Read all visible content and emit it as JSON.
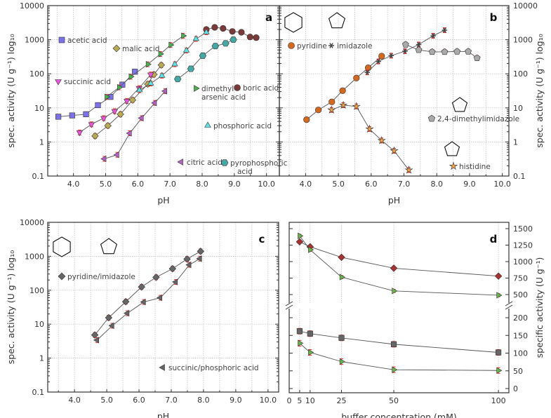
{
  "chart_data": [
    {
      "panel_label": "a",
      "type": "line",
      "xlabel": "pH",
      "ylabel": "spec. activity (U g⁻¹) log₁₀",
      "yscale": "log",
      "ylim": [
        0.1,
        10000
      ],
      "xlim": [
        3.2,
        10.4
      ],
      "grid": true,
      "xticks": [
        "4.0",
        "5.0",
        "6.0",
        "7.0",
        "8.0",
        "9.0",
        "10.0"
      ],
      "yticks": [
        "0.1",
        "1",
        "10",
        "100",
        "1000",
        "10000"
      ],
      "series": [
        {
          "name": "acetic acid",
          "marker": "square",
          "color": "#7b72e8",
          "x": [
            3.53,
            3.96,
            4.39,
            4.76,
            5.15,
            5.52,
            5.91
          ],
          "y": [
            5.5,
            6,
            6.5,
            12,
            21,
            48,
            115
          ]
        },
        {
          "name": "malic acid",
          "marker": "diamond",
          "color": "#b8ab55",
          "x": [
            4.67,
            5.07,
            5.46,
            5.84,
            6.31,
            6.5,
            6.73
          ],
          "y": [
            1.5,
            3,
            6.5,
            17,
            50,
            95,
            180
          ]
        },
        {
          "name": "succinic acid",
          "marker": "tri-down",
          "color": "#ee55e0",
          "x": [
            4.19,
            4.56,
            4.94,
            5.28,
            5.66,
            6.04,
            6.4
          ],
          "y": [
            1.9,
            3.3,
            5,
            8,
            16,
            38,
            95
          ]
        },
        {
          "name": "dimethyl-",
          "name2": "arsenic acid",
          "marker": "tri-right",
          "color": "#4caf50",
          "x": [
            5.03,
            5.42,
            5.78,
            6.31,
            6.7,
            7.02,
            7.41
          ],
          "y": [
            21,
            40,
            82,
            190,
            380,
            700,
            1300
          ]
        },
        {
          "name": "boric acid",
          "marker": "circle",
          "color": "#7a3a3a",
          "x": [
            8.13,
            8.39,
            8.65,
            8.94,
            9.22,
            9.49,
            9.68
          ],
          "y": [
            2000,
            2300,
            2150,
            1750,
            1650,
            1200,
            1150
          ]
        },
        {
          "name": "phosphoric acid",
          "marker": "tri-up",
          "color": "#62e0e4",
          "x": [
            6.05,
            6.4,
            6.75,
            7.15,
            7.51,
            7.81,
            8.13
          ],
          "y": [
            33,
            52,
            88,
            190,
            480,
            1050,
            1650
          ]
        },
        {
          "name": "citric acid",
          "marker": "tri-left",
          "color": "#b262c4",
          "x": [
            4.96,
            5.36,
            5.75,
            6.12,
            6.53,
            6.85
          ],
          "y": [
            0.32,
            0.42,
            1.8,
            5,
            14,
            31
          ]
        },
        {
          "name": "pyrophosphoric",
          "name2": "acid",
          "marker": "hexagon",
          "color": "#45a8a4",
          "x": [
            7.24,
            7.65,
            8.02,
            8.41,
            8.73,
            8.97
          ],
          "y": [
            70,
            140,
            340,
            650,
            780,
            1000
          ]
        }
      ]
    },
    {
      "panel_label": "b",
      "type": "line",
      "xlabel": "pH",
      "ylabel": "spec. activity (U g⁻¹) log₁₀",
      "yscale": "log",
      "ylim": [
        0.1,
        10000
      ],
      "xlim": [
        3.2,
        10.2
      ],
      "grid": true,
      "xticks": [
        "4.0",
        "5.0",
        "6.0",
        "7.0",
        "8.0",
        "9.0",
        "10.0"
      ],
      "yticks": [
        "0.1",
        "1",
        "10",
        "100",
        "1000",
        "10000"
      ],
      "series": [
        {
          "name": "pyridine",
          "marker": "circle",
          "color": "#d2691e",
          "x": [
            4.03,
            4.39,
            4.8,
            5.13,
            5.55,
            5.91,
            6.32
          ],
          "y": [
            4.5,
            8.7,
            15,
            32,
            75,
            150,
            330
          ]
        },
        {
          "name": "imidazole",
          "marker": "star6",
          "color": "#444444",
          "x": [
            5.88,
            6.22,
            6.61,
            7.03,
            7.45,
            7.89,
            8.24
          ],
          "y": [
            110,
            230,
            340,
            460,
            720,
            1300,
            1900
          ]
        },
        {
          "name": "2,4-dimethylimidazole",
          "marker": "pentagon",
          "color": "#aaaaaa",
          "x": [
            7.05,
            7.45,
            7.86,
            8.24,
            8.62,
            8.96,
            9.23
          ],
          "y": [
            720,
            500,
            440,
            440,
            450,
            450,
            290
          ]
        },
        {
          "name": "histidine",
          "marker": "star5",
          "color": "#f4a348",
          "x": [
            4.79,
            5.15,
            5.55,
            5.95,
            6.32,
            6.7,
            7.15
          ],
          "y": [
            8.7,
            12,
            11,
            2.4,
            1.1,
            0.55,
            0.15
          ]
        }
      ]
    },
    {
      "panel_label": "c",
      "type": "line",
      "xlabel": "pH",
      "ylabel": "spec. activity (U g⁻¹) log₁₀",
      "yscale": "log",
      "ylim": [
        0.1,
        10000
      ],
      "xlim": [
        3.17,
        10.33
      ],
      "grid": true,
      "xticks": [
        "4.0",
        "5.0",
        "6.0",
        "7.0",
        "8.0",
        "9.0",
        "10.0"
      ],
      "yticks": [
        "0.1",
        "1",
        "10",
        "100",
        "1000",
        "10000"
      ],
      "series": [
        {
          "name": "pyridine/imidazole",
          "marker": "diamond",
          "color": "#666666",
          "x": [
            4.63,
            5.06,
            5.59,
            6.08,
            6.53,
            7.04,
            7.49,
            7.91
          ],
          "y": [
            4.8,
            15.5,
            46,
            125,
            240,
            430,
            830,
            1400
          ]
        },
        {
          "name": "succinic/phosphoric acid",
          "marker": "tri-left",
          "color": "#666666",
          "x": [
            4.7,
            5.17,
            5.64,
            6.15,
            6.66,
            7.14,
            7.56,
            7.89
          ],
          "y": [
            3.4,
            9,
            21,
            45,
            60,
            175,
            560,
            850
          ]
        }
      ]
    },
    {
      "panel_label": "d",
      "type": "line",
      "xlabel": "buffer concentration (mM)",
      "ylabel": "specific activity (U g⁻¹)",
      "yscale": "linear-broken",
      "ylim_lower": [
        0,
        200
      ],
      "ylim_upper": [
        500,
        1500
      ],
      "xlim": [
        0,
        105
      ],
      "grid": true,
      "xticks": [
        "0",
        "5",
        "10",
        "25",
        "50",
        "100"
      ],
      "yticks_lower": [
        "0",
        "50",
        "100",
        "150",
        "200"
      ],
      "yticks_upper": [
        "500",
        "750",
        "1000",
        "1250",
        "1500"
      ],
      "series": [
        {
          "segment": "upper",
          "marker": "diamond",
          "color": "#a83232",
          "x": [
            5,
            10,
            25,
            50,
            100
          ],
          "y": [
            1300,
            1225,
            1065,
            900,
            780
          ]
        },
        {
          "segment": "upper",
          "marker": "tri-right",
          "color": "#6ab04c",
          "x": [
            5,
            10,
            25,
            50,
            100
          ],
          "y": [
            1390,
            1180,
            765,
            555,
            490
          ]
        },
        {
          "segment": "lower",
          "marker": "square",
          "color": "#666666",
          "x": [
            5,
            10,
            25,
            50,
            100
          ],
          "y": [
            162,
            155,
            143,
            125,
            102
          ]
        },
        {
          "segment": "lower",
          "marker": "tri-right",
          "color": "#6ab04c",
          "x": [
            5,
            10,
            25,
            50,
            100
          ],
          "y": [
            128,
            102,
            76,
            53,
            51
          ]
        }
      ]
    }
  ]
}
